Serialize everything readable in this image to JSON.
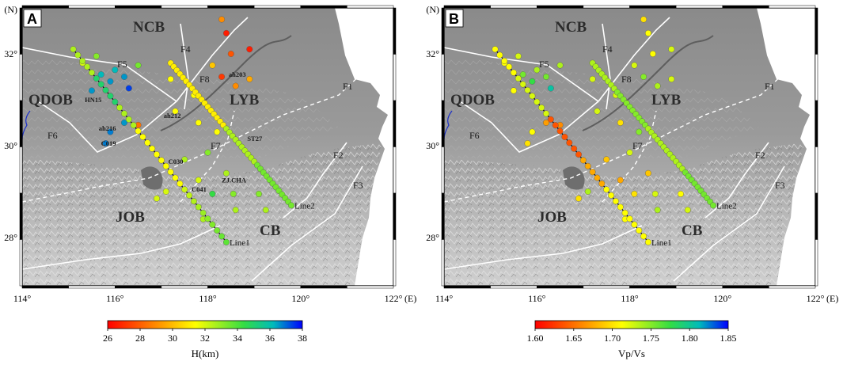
{
  "panels": [
    {
      "letter": "A",
      "colorbar": {
        "min": 26,
        "max": 38,
        "ticks": [
          "26",
          "28",
          "30",
          "32",
          "34",
          "36",
          "38"
        ],
        "title": "H(km)",
        "reverse": false
      }
    },
    {
      "letter": "B",
      "colorbar": {
        "min": 1.6,
        "max": 1.85,
        "ticks": [
          "1.60",
          "1.65",
          "1.70",
          "1.75",
          "1.80",
          "1.85"
        ],
        "title": "Vp/Vs",
        "reverse": false
      }
    }
  ],
  "map": {
    "north_label": "(N)",
    "east_label": "(E)",
    "lon_ticks": [
      "114°",
      "116°",
      "118°",
      "120°",
      "122°"
    ],
    "lat_ticks": [
      "32°",
      "30°",
      "28°"
    ],
    "blocks": [
      "NCB",
      "QDOB",
      "LYB",
      "JOB",
      "CB"
    ],
    "faults": [
      "F1",
      "F2",
      "F3",
      "F4",
      "F5",
      "F6",
      "F7",
      "F8"
    ],
    "lines": [
      "Line1",
      "Line2"
    ]
  },
  "stations_A": [
    "HN15",
    "ah216",
    "C019",
    "ah212",
    "ah203",
    "ST27",
    "C030",
    "C041",
    "ZJ.CHA"
  ],
  "colors": {
    "frame": "#000000",
    "fault": "#ffffff",
    "terrain_low": "#8a8a8a",
    "terrain_high": "#e6e6e6",
    "lake": "#777777",
    "blue_border": "#1a2ec8"
  }
}
